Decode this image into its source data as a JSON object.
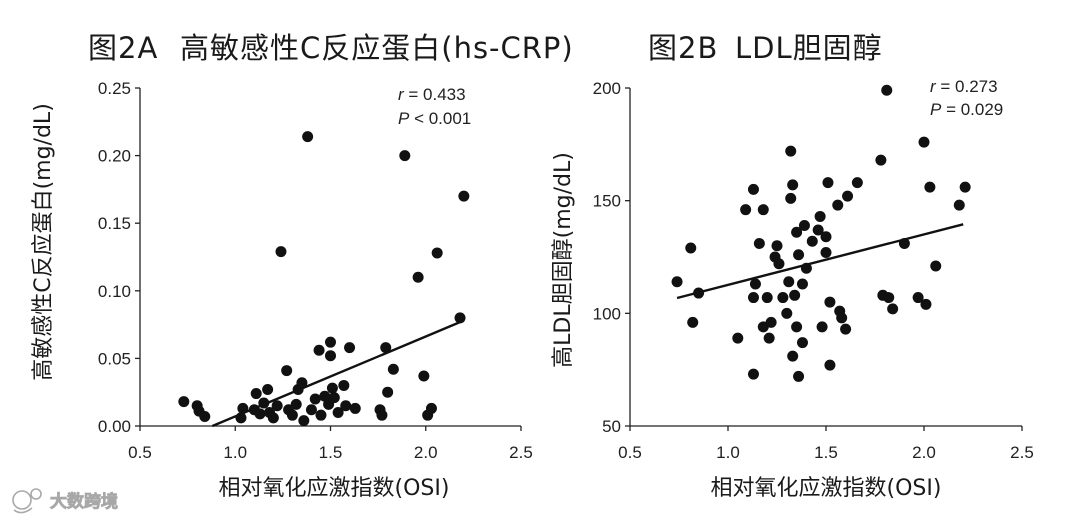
{
  "figure": {
    "watermark": "大数跨境"
  },
  "chart_data": [
    {
      "type": "scatter",
      "label": "图2A",
      "title": "高敏感性C反应蛋白(hs-CRP)",
      "xlabel": "相对氧化应激指数(OSI)",
      "ylabel": "高敏感性C反应蛋白(mg/dL)",
      "xlim": [
        0.5,
        2.5
      ],
      "ylim": [
        0,
        0.25
      ],
      "xticks": [
        0.5,
        1.0,
        1.5,
        2.0,
        2.5
      ],
      "xtick_labels": [
        "0.5",
        "1.0",
        "1.5",
        "2.0",
        "2.5"
      ],
      "yticks": [
        0,
        0.05,
        0.1,
        0.15,
        0.2,
        0.25
      ],
      "ytick_labels": [
        "0.00",
        "0.05",
        "0.10",
        "0.15",
        "0.20",
        "0.25"
      ],
      "grid": false,
      "color": "#111111",
      "series": [
        {
          "x": [
            0.73,
            0.8,
            0.81,
            0.84,
            1.03,
            1.04,
            1.1,
            1.11,
            1.13,
            1.15,
            1.17,
            1.18,
            1.2,
            1.22,
            1.24,
            1.27,
            1.28,
            1.3,
            1.32,
            1.33,
            1.35,
            1.36,
            1.38,
            1.4,
            1.42,
            1.44,
            1.45,
            1.47,
            1.49,
            1.5,
            1.5,
            1.51,
            1.52,
            1.54,
            1.57,
            1.58,
            1.6,
            1.63,
            1.76,
            1.77,
            1.79,
            1.8,
            1.83,
            1.89,
            1.96,
            1.99,
            2.01,
            2.03,
            2.06,
            2.18,
            2.2
          ],
          "y": [
            0.018,
            0.015,
            0.011,
            0.007,
            0.006,
            0.013,
            0.012,
            0.024,
            0.009,
            0.017,
            0.027,
            0.01,
            0.006,
            0.015,
            0.129,
            0.041,
            0.012,
            0.008,
            0.016,
            0.027,
            0.032,
            0.004,
            0.214,
            0.012,
            0.02,
            0.056,
            0.008,
            0.022,
            0.016,
            0.062,
            0.052,
            0.028,
            0.021,
            0.01,
            0.03,
            0.015,
            0.058,
            0.013,
            0.012,
            0.008,
            0.058,
            0.025,
            0.042,
            0.2,
            0.11,
            0.037,
            0.008,
            0.013,
            0.128,
            0.08,
            0.17
          ]
        }
      ],
      "trendline": {
        "x": [
          0.88,
          2.2
        ],
        "y": [
          0.0,
          0.078
        ]
      },
      "annotation": {
        "r_symbol": "r",
        "r_text": " = 0.433",
        "p_symbol": "P",
        "p_text": " < 0.001"
      }
    },
    {
      "type": "scatter",
      "label": "图2B",
      "title": "LDL胆固醇",
      "xlabel": "相对氧化应激指数(OSI)",
      "ylabel": "高LDL胆固醇(mg/dL)",
      "xlim": [
        0.5,
        2.5
      ],
      "ylim": [
        50,
        200
      ],
      "xticks": [
        0.5,
        1.0,
        1.5,
        2.0,
        2.5
      ],
      "xtick_labels": [
        "0.5",
        "1.0",
        "1.5",
        "2.0",
        "2.5"
      ],
      "yticks": [
        50,
        100,
        150,
        200
      ],
      "ytick_labels": [
        "50",
        "100",
        "150",
        "200"
      ],
      "grid": false,
      "color": "#111111",
      "series": [
        {
          "x": [
            0.74,
            0.81,
            0.82,
            0.85,
            1.05,
            1.09,
            1.13,
            1.13,
            1.13,
            1.14,
            1.16,
            1.18,
            1.18,
            1.2,
            1.21,
            1.22,
            1.24,
            1.25,
            1.26,
            1.28,
            1.3,
            1.31,
            1.32,
            1.32,
            1.33,
            1.33,
            1.34,
            1.35,
            1.35,
            1.36,
            1.38,
            1.38,
            1.39,
            1.4,
            1.36,
            1.43,
            1.46,
            1.47,
            1.48,
            1.5,
            1.5,
            1.51,
            1.52,
            1.52,
            1.56,
            1.57,
            1.58,
            1.6,
            1.61,
            1.66,
            1.78,
            1.79,
            1.81,
            1.82,
            1.84,
            1.9,
            1.97,
            2.0,
            2.01,
            2.03,
            2.06,
            2.18,
            2.21
          ],
          "y": [
            114,
            129,
            96,
            109,
            89,
            146,
            107,
            155,
            73,
            113,
            131,
            146,
            94,
            107,
            89,
            96,
            125,
            130,
            122,
            107,
            100,
            114,
            172,
            151,
            157,
            81,
            108,
            94,
            136,
            126,
            87,
            113,
            139,
            120,
            72,
            132,
            137,
            143,
            94,
            134,
            127,
            158,
            105,
            77,
            148,
            101,
            98,
            93,
            152,
            158,
            168,
            108,
            199,
            107,
            102,
            131,
            107,
            176,
            104,
            156,
            121,
            148,
            156
          ]
        }
      ],
      "trendline": {
        "x": [
          0.74,
          2.2
        ],
        "y": [
          106.8,
          139.5
        ]
      },
      "annotation": {
        "r_symbol": "r",
        "r_text": " = 0.273",
        "p_symbol": "P",
        "p_text": " = 0.029"
      }
    }
  ]
}
